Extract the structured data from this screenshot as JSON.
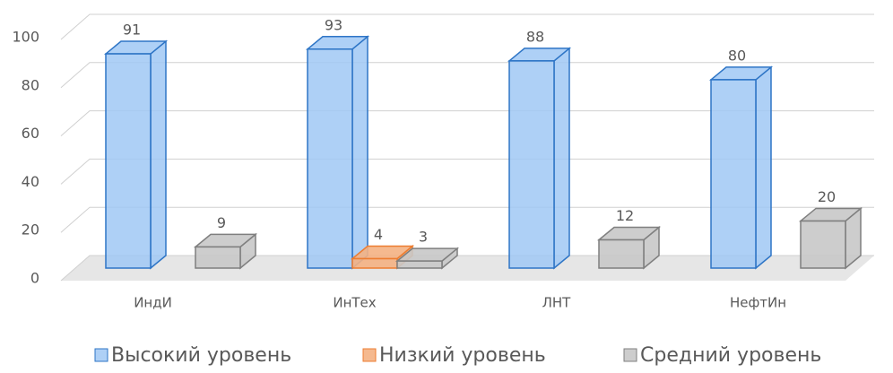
{
  "chart_data": {
    "type": "bar3d",
    "categories": [
      "ИндИ",
      "ИнТех",
      "ЛНТ",
      "НефтИн"
    ],
    "series": [
      {
        "name": "Высокий уровень",
        "color": "#2e75c6",
        "values": [
          91,
          93,
          88,
          80
        ]
      },
      {
        "name": "Низкий уровень",
        "color": "#ed7d31",
        "values": [
          null,
          4,
          null,
          null
        ]
      },
      {
        "name": "Средний уровень",
        "color": "#7f7f7f",
        "values": [
          9,
          3,
          12,
          20
        ]
      }
    ],
    "ylim": [
      0,
      100
    ],
    "yticks": [
      0,
      20,
      40,
      60,
      80,
      100
    ],
    "grid": true,
    "legend": "bottom"
  }
}
